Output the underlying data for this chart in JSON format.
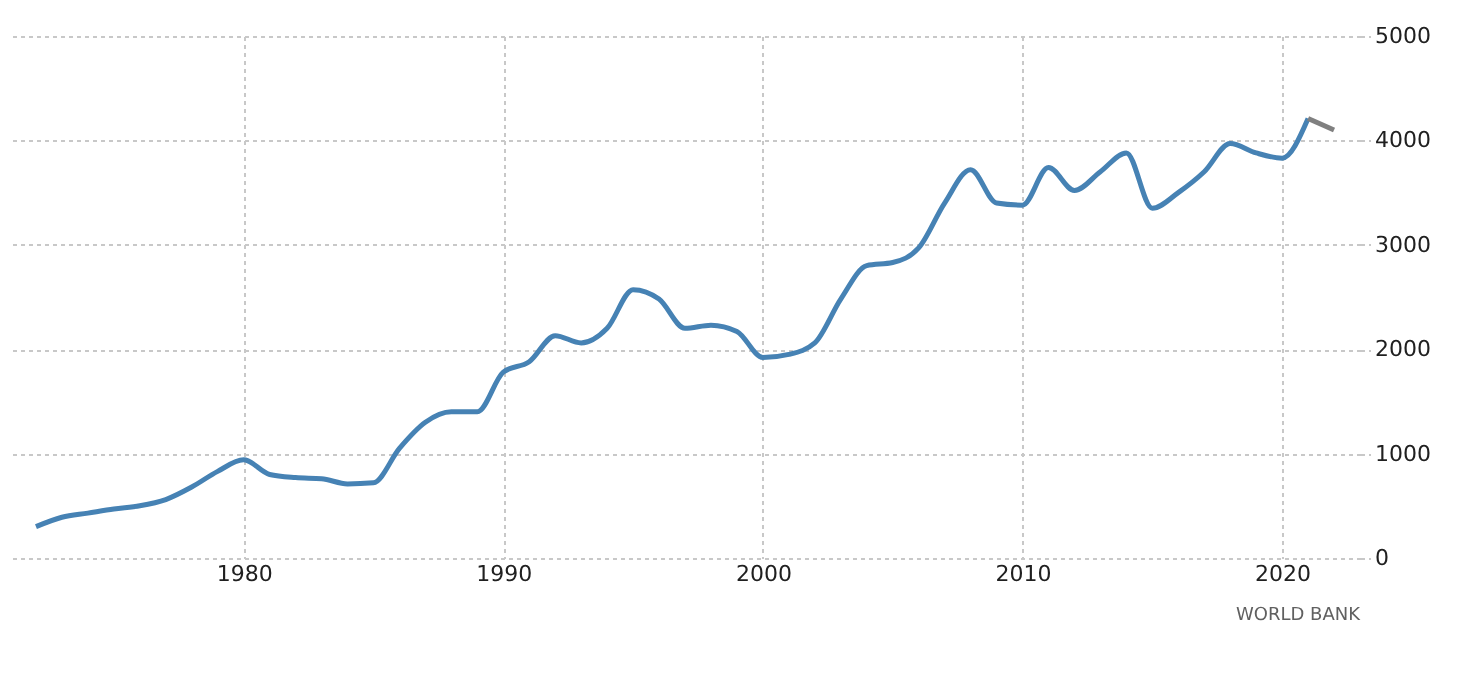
{
  "chart_data": {
    "type": "line",
    "x": [
      1972,
      1973,
      1974,
      1975,
      1976,
      1977,
      1978,
      1979,
      1980,
      1981,
      1982,
      1983,
      1984,
      1985,
      1986,
      1987,
      1988,
      1989,
      1990,
      1991,
      1992,
      1993,
      1994,
      1995,
      1996,
      1997,
      1998,
      1999,
      2000,
      2001,
      2002,
      2003,
      2004,
      2005,
      2006,
      2007,
      2008,
      2009,
      2010,
      2011,
      2012,
      2013,
      2014,
      2015,
      2016,
      2017,
      2018,
      2019,
      2020,
      2021,
      2022
    ],
    "series": [
      {
        "color": "#4682b4",
        "values": [
          300,
          390,
          430,
          470,
          500,
          560,
          680,
          830,
          940,
          800,
          770,
          760,
          710,
          720,
          1050,
          1300,
          1400,
          1400,
          1780,
          1880,
          2130,
          2060,
          2200,
          2570,
          2480,
          2200,
          2230,
          2170,
          1920,
          1950,
          2060,
          2480,
          2800,
          2830,
          2970,
          3400,
          3720,
          3400,
          3380,
          3740,
          3520,
          3700,
          3880,
          3350,
          3500,
          3700,
          3970,
          3880,
          3830,
          4210,
          null
        ]
      },
      {
        "color": "#808080",
        "values": [
          null,
          null,
          null,
          null,
          null,
          null,
          null,
          null,
          null,
          null,
          null,
          null,
          null,
          null,
          null,
          null,
          null,
          null,
          null,
          null,
          null,
          null,
          null,
          null,
          null,
          null,
          null,
          null,
          null,
          null,
          null,
          null,
          null,
          null,
          null,
          null,
          null,
          null,
          null,
          null,
          null,
          null,
          null,
          null,
          null,
          null,
          null,
          null,
          null,
          4210,
          4100
        ]
      }
    ],
    "xlim": [
      1971,
      2023
    ],
    "xticks": [
      1980,
      1990,
      2000,
      2010,
      2020
    ],
    "ylim": [
      0,
      5000
    ],
    "yticks": [
      0,
      1000,
      2000,
      3000,
      4000,
      5000
    ],
    "grid": true,
    "line_style": "solid",
    "annotations": [
      "WORLD BANK"
    ]
  }
}
